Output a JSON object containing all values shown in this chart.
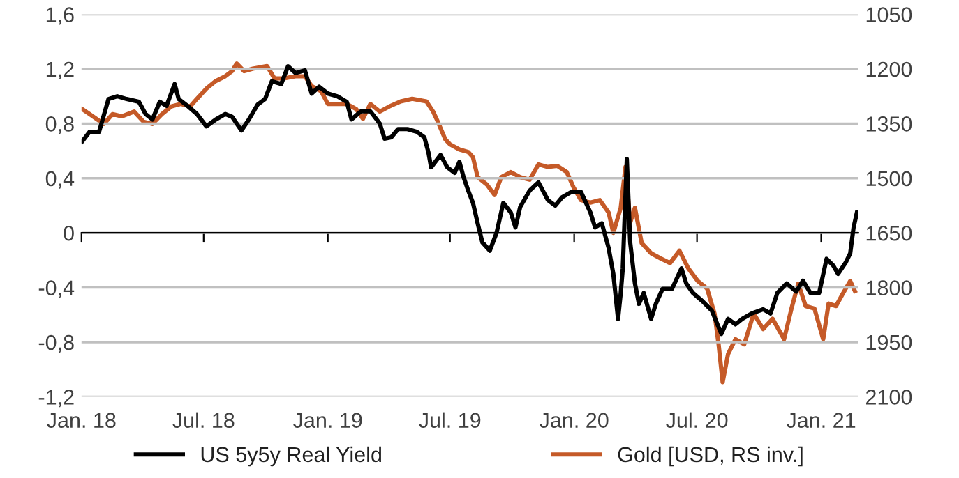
{
  "chart_data": {
    "type": "line",
    "xlim": [
      "2018-01-01",
      "2021-02-25"
    ],
    "xticks": [
      {
        "value": "2018-01-01",
        "label": "Jan. 18"
      },
      {
        "value": "2018-07-01",
        "label": "Jul. 18"
      },
      {
        "value": "2019-01-01",
        "label": "Jan. 19"
      },
      {
        "value": "2019-07-01",
        "label": "Jul. 19"
      },
      {
        "value": "2020-01-01",
        "label": "Jan. 20"
      },
      {
        "value": "2020-07-01",
        "label": "Jul. 20"
      },
      {
        "value": "2021-01-01",
        "label": "Jan. 21"
      }
    ],
    "ylim": [
      -1.2,
      1.6
    ],
    "yticks": [
      {
        "value": -1.2,
        "label": "-1,2"
      },
      {
        "value": -0.8,
        "label": "-0,8"
      },
      {
        "value": -0.4,
        "label": "-0,4"
      },
      0,
      {
        "value": 0.4,
        "label": "0,4"
      },
      {
        "value": 0.8,
        "label": "0,8"
      },
      {
        "value": 1.2,
        "label": "1,2"
      },
      {
        "value": 1.6,
        "label": "1,6"
      }
    ],
    "y2lim": [
      2100,
      1050
    ],
    "y2ticks": [
      1050,
      1200,
      1350,
      1500,
      1650,
      1800,
      1950,
      2100
    ],
    "grid": "y",
    "legend": "bottom",
    "marker": "none",
    "line_style": "solid",
    "series": [
      {
        "name": "US 5y5y Real Yield",
        "color": "#000000",
        "x": [
          "2018-01-02",
          "2018-01-13",
          "2018-01-27",
          "2018-02-10",
          "2018-02-23",
          "2018-03-09",
          "2018-03-27",
          "2018-04-06",
          "2018-04-16",
          "2018-04-27",
          "2018-05-07",
          "2018-05-19",
          "2018-05-25",
          "2018-06-07",
          "2018-06-21",
          "2018-07-05",
          "2018-07-19",
          "2018-08-02",
          "2018-08-12",
          "2018-08-26",
          "2018-09-06",
          "2018-09-19",
          "2018-09-30",
          "2018-10-10",
          "2018-10-24",
          "2018-11-03",
          "2018-11-14",
          "2018-11-28",
          "2018-12-08",
          "2018-12-19",
          "2019-01-01",
          "2019-01-15",
          "2019-01-29",
          "2019-02-05",
          "2019-02-19",
          "2019-03-05",
          "2019-03-19",
          "2019-03-26",
          "2019-04-05",
          "2019-04-15",
          "2019-04-29",
          "2019-05-13",
          "2019-05-24",
          "2019-05-30",
          "2019-06-03",
          "2019-06-17",
          "2019-06-27",
          "2019-07-08",
          "2019-07-15",
          "2019-07-21",
          "2019-07-28",
          "2019-08-04",
          "2019-08-11",
          "2019-08-18",
          "2019-08-29",
          "2019-09-08",
          "2019-09-18",
          "2019-09-29",
          "2019-10-06",
          "2019-10-13",
          "2019-10-27",
          "2019-11-09",
          "2019-11-23",
          "2019-12-04",
          "2019-12-14",
          "2019-12-28",
          "2020-01-11",
          "2020-01-25",
          "2020-02-01",
          "2020-02-11",
          "2020-02-21",
          "2020-02-28",
          "2020-03-06",
          "2020-03-10",
          "2020-03-13",
          "2020-03-19",
          "2020-03-24",
          "2020-03-31",
          "2020-04-06",
          "2020-04-13",
          "2020-04-24",
          "2020-05-01",
          "2020-05-11",
          "2020-05-25",
          "2020-06-08",
          "2020-06-15",
          "2020-06-25",
          "2020-07-09",
          "2020-07-23",
          "2020-08-06",
          "2020-08-16",
          "2020-08-27",
          "2020-09-06",
          "2020-09-20",
          "2020-10-07",
          "2020-10-18",
          "2020-10-28",
          "2020-11-11",
          "2020-11-25",
          "2020-12-05",
          "2020-12-16",
          "2020-12-29",
          "2021-01-09",
          "2021-01-19",
          "2021-01-26",
          "2021-02-06",
          "2021-02-13",
          "2021-02-18",
          "2021-02-23"
        ],
        "values": [
          0.67,
          0.74,
          0.74,
          0.98,
          1.0,
          0.98,
          0.96,
          0.87,
          0.83,
          0.96,
          0.93,
          1.09,
          0.98,
          0.93,
          0.87,
          0.78,
          0.83,
          0.87,
          0.85,
          0.75,
          0.83,
          0.94,
          0.98,
          1.11,
          1.09,
          1.22,
          1.17,
          1.19,
          1.02,
          1.07,
          1.02,
          1.0,
          0.96,
          0.83,
          0.89,
          0.89,
          0.8,
          0.69,
          0.7,
          0.76,
          0.76,
          0.74,
          0.7,
          0.59,
          0.48,
          0.57,
          0.48,
          0.44,
          0.52,
          0.41,
          0.31,
          0.22,
          0.07,
          -0.07,
          -0.13,
          0.0,
          0.22,
          0.15,
          0.04,
          0.19,
          0.31,
          0.37,
          0.24,
          0.2,
          0.26,
          0.3,
          0.3,
          0.15,
          0.04,
          0.07,
          -0.11,
          -0.3,
          -0.63,
          -0.44,
          -0.26,
          0.54,
          -0.07,
          -0.37,
          -0.52,
          -0.44,
          -0.63,
          -0.52,
          -0.41,
          -0.41,
          -0.26,
          -0.37,
          -0.44,
          -0.5,
          -0.57,
          -0.74,
          -0.63,
          -0.67,
          -0.63,
          -0.59,
          -0.56,
          -0.59,
          -0.44,
          -0.37,
          -0.43,
          -0.35,
          -0.44,
          -0.44,
          -0.19,
          -0.24,
          -0.3,
          -0.22,
          -0.15,
          0.04,
          0.15
        ]
      },
      {
        "name": "Gold [USD, RS inv.]",
        "color": "#c55a28",
        "axis": "y2",
        "x": [
          "2018-01-02",
          "2018-01-13",
          "2018-01-23",
          "2018-02-03",
          "2018-02-16",
          "2018-03-02",
          "2018-03-20",
          "2018-04-03",
          "2018-04-16",
          "2018-04-30",
          "2018-05-14",
          "2018-05-28",
          "2018-06-11",
          "2018-06-21",
          "2018-07-05",
          "2018-07-19",
          "2018-08-02",
          "2018-08-12",
          "2018-08-19",
          "2018-08-30",
          "2018-09-12",
          "2018-10-03",
          "2018-10-14",
          "2018-10-28",
          "2018-11-14",
          "2018-11-28",
          "2018-12-08",
          "2018-12-22",
          "2019-01-01",
          "2019-01-15",
          "2019-01-29",
          "2019-02-12",
          "2019-02-22",
          "2019-03-05",
          "2019-03-19",
          "2019-04-02",
          "2019-04-19",
          "2019-05-06",
          "2019-05-27",
          "2019-06-06",
          "2019-06-13",
          "2019-06-24",
          "2019-07-01",
          "2019-07-15",
          "2019-07-28",
          "2019-08-04",
          "2019-08-11",
          "2019-08-25",
          "2019-09-05",
          "2019-09-15",
          "2019-09-29",
          "2019-10-13",
          "2019-10-27",
          "2019-11-09",
          "2019-11-23",
          "2019-12-07",
          "2019-12-21",
          "2019-12-31",
          "2020-01-11",
          "2020-01-25",
          "2020-02-08",
          "2020-02-21",
          "2020-02-28",
          "2020-03-10",
          "2020-03-17",
          "2020-03-24",
          "2020-03-31",
          "2020-04-10",
          "2020-04-24",
          "2020-05-08",
          "2020-05-22",
          "2020-06-05",
          "2020-06-18",
          "2020-07-02",
          "2020-07-16",
          "2020-07-27",
          "2020-08-02",
          "2020-08-08",
          "2020-08-16",
          "2020-08-27",
          "2020-09-09",
          "2020-09-23",
          "2020-10-07",
          "2020-10-21",
          "2020-11-07",
          "2020-11-18",
          "2020-11-28",
          "2020-12-09",
          "2020-12-22",
          "2021-01-04",
          "2021-01-12",
          "2021-01-23",
          "2021-02-02",
          "2021-02-13",
          "2021-02-20"
        ],
        "values": [
          1310,
          1324,
          1337,
          1351,
          1324,
          1330,
          1317,
          1345,
          1351,
          1324,
          1303,
          1296,
          1303,
          1282,
          1254,
          1233,
          1220,
          1206,
          1185,
          1206,
          1199,
          1192,
          1226,
          1226,
          1220,
          1220,
          1247,
          1261,
          1296,
          1296,
          1296,
          1310,
          1337,
          1296,
          1317,
          1303,
          1289,
          1282,
          1289,
          1317,
          1345,
          1393,
          1407,
          1421,
          1428,
          1442,
          1497,
          1518,
          1546,
          1497,
          1483,
          1497,
          1504,
          1462,
          1469,
          1466,
          1483,
          1525,
          1560,
          1567,
          1560,
          1594,
          1650,
          1581,
          1469,
          1622,
          1581,
          1678,
          1706,
          1720,
          1733,
          1699,
          1747,
          1782,
          1803,
          1872,
          1956,
          2060,
          1983,
          1942,
          1956,
          1872,
          1914,
          1886,
          1942,
          1858,
          1789,
          1851,
          1858,
          1942,
          1844,
          1851,
          1817,
          1782,
          1810
        ]
      }
    ]
  }
}
